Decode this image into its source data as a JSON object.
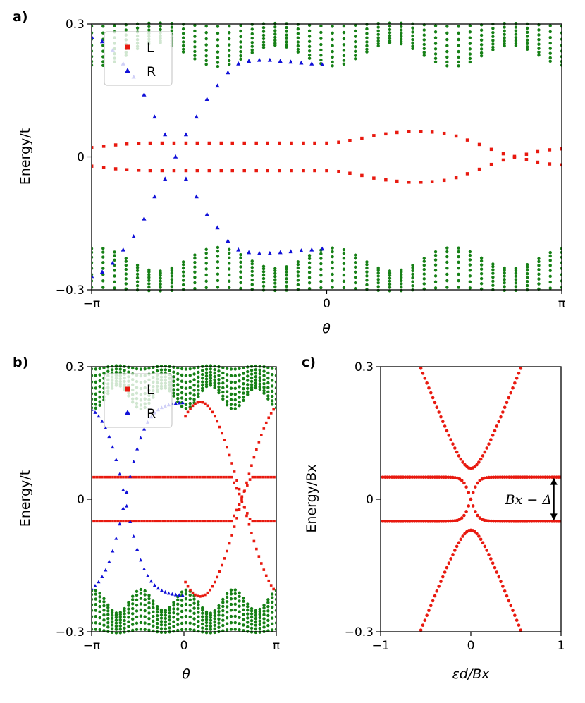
{
  "chart_data": [
    {
      "panel_label": "a)",
      "type": "scatter",
      "xlabel": "θ",
      "ylabel": "Energy/t",
      "xlim": [
        -3.1416,
        3.1416
      ],
      "ylim": [
        -0.3,
        0.3
      ],
      "xticks": [
        "−π",
        "0",
        "π"
      ],
      "yticks": [
        "−0.3",
        "0",
        "0.3"
      ],
      "legend": {
        "placement": "top-left",
        "entries": [
          {
            "label": "L",
            "color": "#e8190f",
            "marker": "square"
          },
          {
            "label": "R",
            "color": "#1010d8",
            "marker": "triangle"
          }
        ]
      },
      "series": [
        {
          "name": "L",
          "color": "#e8190f",
          "marker": "square",
          "description_values": "two branches ±E(θ)",
          "x": [
            -3.14,
            -2.98,
            -2.82,
            -2.67,
            -2.51,
            -2.36,
            -2.2,
            -2.04,
            -1.88,
            -1.73,
            -1.57,
            -1.41,
            -1.26,
            -1.1,
            -0.94,
            -0.79,
            -0.63,
            -0.47,
            -0.31,
            -0.16,
            0.0,
            0.16,
            0.31,
            0.47,
            0.63,
            0.79,
            0.94,
            1.1,
            1.26,
            1.41,
            1.57,
            1.73,
            1.88,
            2.04,
            2.2,
            2.36,
            2.51,
            2.67,
            2.82,
            2.98,
            3.14
          ],
          "y": [
            0.021,
            0.024,
            0.027,
            0.029,
            0.03,
            0.031,
            0.031,
            0.031,
            0.031,
            0.031,
            0.031,
            0.031,
            0.031,
            0.031,
            0.031,
            0.031,
            0.031,
            0.031,
            0.031,
            0.031,
            0.031,
            0.033,
            0.037,
            0.042,
            0.048,
            0.052,
            0.055,
            0.057,
            0.057,
            0.056,
            0.053,
            0.047,
            0.038,
            0.028,
            0.017,
            0.007,
            0.001,
            0.006,
            0.012,
            0.016,
            0.018
          ]
        },
        {
          "name": "R",
          "color": "#1010d8",
          "marker": "triangle",
          "description_values": "two branches crossing zero at θ≈-1.9",
          "x": [
            -3.14,
            -3.0,
            -2.86,
            -2.72,
            -2.58,
            -2.44,
            -2.3,
            -2.16,
            -2.02,
            -1.88,
            -1.74,
            -1.6,
            -1.46,
            -1.32,
            -1.18,
            -1.04,
            -0.9,
            -0.76,
            -0.62,
            -0.48,
            -0.34,
            -0.2,
            -0.06
          ],
          "y": [
            0.27,
            0.26,
            0.24,
            0.21,
            0.18,
            0.14,
            0.09,
            0.05,
            0.0,
            -0.05,
            -0.09,
            -0.13,
            -0.16,
            -0.19,
            -0.21,
            -0.216,
            -0.218,
            -0.218,
            -0.216,
            -0.214,
            -0.212,
            -0.21,
            -0.208
          ]
        },
        {
          "name": "continuum",
          "color": "#168016",
          "marker": "circle",
          "description_values": "band edge ≈ ±(0.2 + 0.05(1+cos(4θ)))"
        }
      ]
    },
    {
      "panel_label": "b)",
      "type": "scatter",
      "xlabel": "θ",
      "ylabel": "Energy/t",
      "xlim": [
        -3.1416,
        3.1416
      ],
      "ylim": [
        -0.3,
        0.3
      ],
      "xticks": [
        "−π",
        "0",
        "π"
      ],
      "yticks": [
        "−0.3",
        "0",
        "0.3"
      ],
      "legend": {
        "placement": "top-left",
        "entries": [
          {
            "label": "L",
            "color": "#e8190f",
            "marker": "square"
          },
          {
            "label": "R",
            "color": "#1010d8",
            "marker": "triangle"
          }
        ]
      },
      "series": [
        {
          "name": "L",
          "color": "#e8190f",
          "marker": "square",
          "levels": [
            0.05,
            -0.05
          ]
        },
        {
          "name": "R",
          "color": "#1010d8",
          "marker": "triangle"
        },
        {
          "name": "continuum",
          "color": "#168016",
          "marker": "circle"
        }
      ]
    },
    {
      "panel_label": "c)",
      "type": "scatter",
      "xlabel": "εd/Bx",
      "ylabel": "Energy/Bx",
      "xlim": [
        -1,
        1
      ],
      "ylim": [
        -0.3,
        0.3
      ],
      "xticks": [
        "−1",
        "0",
        "1"
      ],
      "yticks": [
        "−0.3",
        "0",
        "0.3"
      ],
      "annotation": "Bx − Δ",
      "series": [
        {
          "name": "levels",
          "color": "#e8190f",
          "marker": "circle",
          "description_values": "inner branches ±0.05 flattening, outer branches ±sqrt(0.07²+(0.5x)²)"
        }
      ]
    }
  ]
}
